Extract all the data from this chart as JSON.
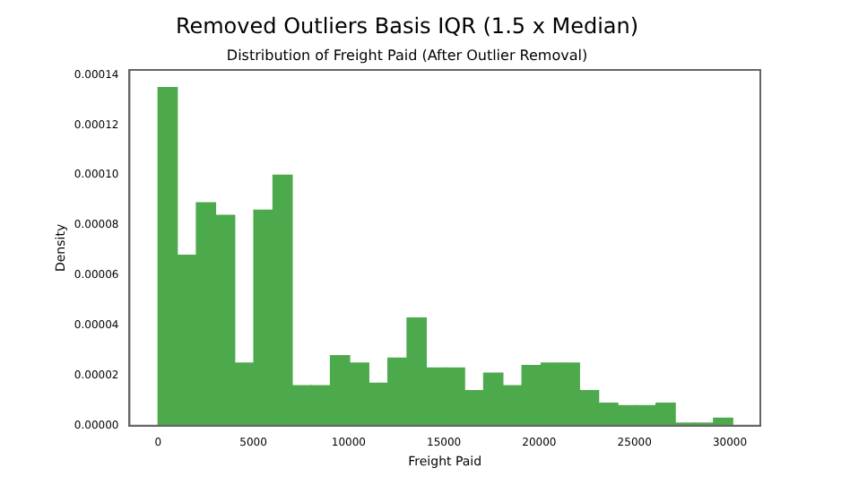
{
  "chart_data": {
    "type": "histogram",
    "title": "Removed Outliers Basis IQR (1.5 x Median)",
    "subtitle": "Distribution of Freight Paid (After Outlier Removal)",
    "xlabel": "Freight Paid",
    "ylabel": "Density",
    "color": "#4caa4c",
    "bins": [
      0,
      1005,
      2010,
      3015,
      4020,
      5025,
      6030,
      7035,
      8040,
      9045,
      10050,
      11055,
      12060,
      13065,
      14070,
      15075,
      16080,
      17085,
      18090,
      19095,
      20100,
      21105,
      22110,
      23115,
      24120,
      25125,
      26130,
      27135,
      28140,
      29145,
      30150
    ],
    "values": [
      0.000135,
      6.8e-05,
      8.9e-05,
      8.4e-05,
      2.5e-05,
      8.6e-05,
      0.0001,
      1.6e-05,
      1.6e-05,
      2.8e-05,
      2.5e-05,
      1.7e-05,
      2.7e-05,
      4.3e-05,
      2.3e-05,
      2.3e-05,
      1.4e-05,
      2.1e-05,
      1.6e-05,
      2.4e-05,
      2.5e-05,
      2.5e-05,
      1.4e-05,
      9e-06,
      8e-06,
      8e-06,
      9e-06,
      1e-06,
      1e-06,
      3e-06
    ],
    "xlim": [
      -1500,
      31600
    ],
    "xticks": [
      0,
      5000,
      10000,
      15000,
      20000,
      25000,
      30000
    ],
    "ylim": [
      0,
      0.000142
    ],
    "yticks": [
      {
        "value": 0,
        "label": "0.00000"
      },
      {
        "value": 2e-05,
        "label": "0.00002"
      },
      {
        "value": 4e-05,
        "label": "0.00004"
      },
      {
        "value": 6e-05,
        "label": "0.00006"
      },
      {
        "value": 8e-05,
        "label": "0.00008"
      },
      {
        "value": 0.0001,
        "label": "0.00010"
      },
      {
        "value": 0.00012,
        "label": "0.00012"
      },
      {
        "value": 0.00014,
        "label": "0.00014"
      }
    ],
    "grid": false,
    "legend": false
  }
}
